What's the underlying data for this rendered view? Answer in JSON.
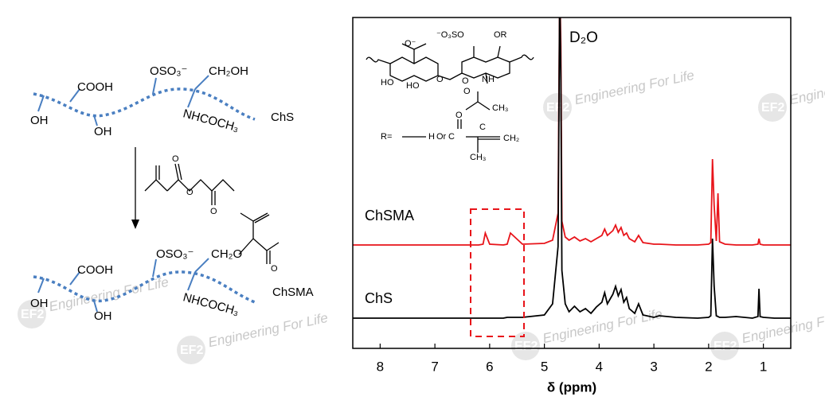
{
  "scheme": {
    "chs": {
      "labels": [
        "COOH",
        "OSO₃⁻",
        "CH₂OH",
        "OH",
        "OH",
        "NHCOCH₃"
      ],
      "name": "ChS"
    },
    "chsma": {
      "labels": [
        "COOH",
        "OSO₃⁻",
        "CH₂O",
        "O",
        "OH",
        "OH",
        "NHCOCH₃"
      ],
      "name": "ChSMA"
    },
    "reagent_labels": [
      "O",
      "O",
      "O"
    ]
  },
  "watermark": {
    "logo": "EF2",
    "text": "Engineering For Life"
  },
  "chart_data": {
    "type": "line",
    "x_label": "δ (ppm)",
    "annotation": "D₂O",
    "inset": {
      "labels": [
        "O⁻",
        "⁻O₃SO",
        "OR",
        "O",
        "HO",
        "HO",
        "O",
        "NH",
        "O",
        "CH₃",
        "R=",
        "H",
        "Or",
        "O",
        "C",
        "C",
        "CH₂",
        "CH₃"
      ]
    },
    "xlim": [
      8.5,
      0.5
    ],
    "xticks": [
      8,
      7,
      6,
      5,
      4,
      3,
      2,
      1
    ],
    "x": [
      8.5,
      8.0,
      7.0,
      6.5,
      6.2,
      6.12,
      6.08,
      6.0,
      5.75,
      5.68,
      5.62,
      5.4,
      5.0,
      4.85,
      4.75,
      4.72,
      4.7,
      4.68,
      4.62,
      4.55,
      4.45,
      4.35,
      4.25,
      4.15,
      4.05,
      3.95,
      3.9,
      3.85,
      3.75,
      3.7,
      3.65,
      3.6,
      3.55,
      3.5,
      3.45,
      3.35,
      3.28,
      3.2,
      3.0,
      2.9,
      2.6,
      2.2,
      2.0,
      1.96,
      1.93,
      1.9,
      1.86,
      1.83,
      1.8,
      1.7,
      1.5,
      1.2,
      1.1,
      1.08,
      1.06,
      1.0,
      0.8,
      0.5
    ],
    "series": [
      {
        "name": "ChSMA",
        "color": "#e8141a",
        "values": [
          0,
          0,
          0,
          0,
          0,
          1,
          15,
          1,
          0,
          1,
          15,
          1,
          2,
          6,
          40,
          330,
          250,
          30,
          10,
          6,
          10,
          5,
          8,
          4,
          8,
          12,
          20,
          12,
          18,
          25,
          16,
          22,
          12,
          15,
          8,
          4,
          12,
          3,
          1,
          1,
          0,
          0,
          1,
          3,
          108,
          50,
          5,
          65,
          4,
          1,
          0,
          0,
          1,
          8,
          1,
          0,
          0,
          0
        ]
      },
      {
        "name": "ChS",
        "color": "#000000",
        "values": [
          0,
          0,
          0,
          0,
          0,
          0,
          0,
          0,
          0,
          1,
          1,
          1,
          4,
          18,
          90,
          420,
          300,
          60,
          18,
          8,
          15,
          8,
          12,
          6,
          14,
          20,
          32,
          18,
          30,
          40,
          28,
          36,
          20,
          26,
          12,
          6,
          18,
          4,
          1,
          3,
          1,
          0,
          1,
          3,
          100,
          40,
          3,
          2,
          1,
          1,
          2,
          0,
          2,
          37,
          2,
          1,
          0,
          0
        ]
      }
    ]
  }
}
